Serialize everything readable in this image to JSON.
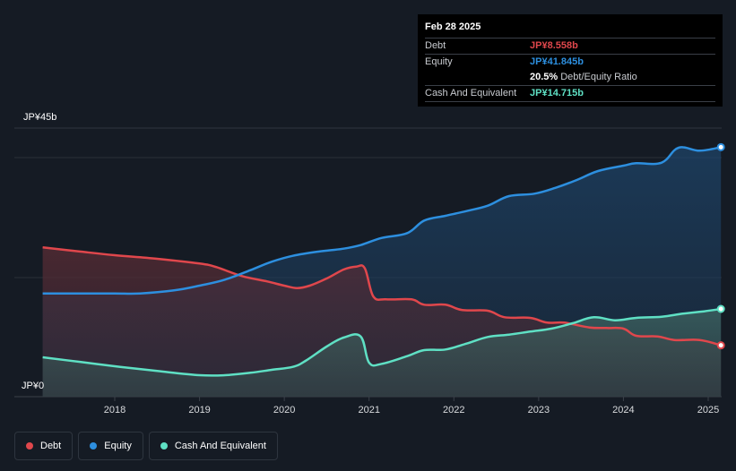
{
  "tooltip": {
    "date": "Feb 28 2025",
    "debt_label": "Debt",
    "debt_value": "JP¥8.558b",
    "equity_label": "Equity",
    "equity_value": "JP¥41.845b",
    "ratio_value": "20.5%",
    "ratio_label": "Debt/Equity Ratio",
    "cash_label": "Cash And Equivalent",
    "cash_value": "JP¥14.715b"
  },
  "legend": [
    {
      "label": "Debt",
      "color": "#e0474c"
    },
    {
      "label": "Equity",
      "color": "#2d8fdf"
    },
    {
      "label": "Cash And Equivalent",
      "color": "#5fe0c4"
    }
  ],
  "chart_data": {
    "type": "line",
    "title": "",
    "xlabel": "",
    "ylabel": "",
    "unit": "JP¥b",
    "y_top_label": "JP¥45b",
    "y_bottom_label": "JP¥0",
    "ylim": [
      0,
      45
    ],
    "xlim": [
      2017.15,
      2025.2
    ],
    "x_ticks": [
      "2018",
      "2019",
      "2020",
      "2021",
      "2022",
      "2023",
      "2024",
      "2025"
    ],
    "series": [
      {
        "name": "Debt",
        "color": "#e0474c",
        "x": [
          2017.15,
          2017.6,
          2018.0,
          2018.5,
          2019.0,
          2019.2,
          2019.5,
          2019.8,
          2020.0,
          2020.15,
          2020.3,
          2020.5,
          2020.7,
          2020.85,
          2020.95,
          2021.05,
          2021.2,
          2021.5,
          2021.65,
          2021.9,
          2022.1,
          2022.4,
          2022.6,
          2022.9,
          2023.1,
          2023.3,
          2023.6,
          2023.8,
          2024.0,
          2024.15,
          2024.4,
          2024.6,
          2024.9,
          2025.15
        ],
        "values": [
          25.0,
          24.3,
          23.7,
          23.1,
          22.3,
          21.7,
          20.2,
          19.3,
          18.6,
          18.2,
          18.6,
          19.8,
          21.3,
          21.8,
          21.5,
          16.8,
          16.3,
          16.3,
          15.4,
          15.4,
          14.5,
          14.4,
          13.3,
          13.2,
          12.4,
          12.4,
          11.6,
          11.5,
          11.4,
          10.2,
          10.1,
          9.5,
          9.5,
          8.6
        ]
      },
      {
        "name": "Equity",
        "color": "#2d8fdf",
        "x": [
          2017.15,
          2017.6,
          2018.0,
          2018.3,
          2018.7,
          2019.0,
          2019.3,
          2019.6,
          2019.85,
          2020.1,
          2020.4,
          2020.7,
          2020.9,
          2021.15,
          2021.45,
          2021.65,
          2021.9,
          2022.15,
          2022.4,
          2022.65,
          2022.95,
          2023.2,
          2023.45,
          2023.7,
          2024.0,
          2024.15,
          2024.45,
          2024.65,
          2024.9,
          2025.15
        ],
        "values": [
          17.3,
          17.3,
          17.3,
          17.3,
          17.8,
          18.6,
          19.6,
          21.2,
          22.6,
          23.6,
          24.3,
          24.8,
          25.4,
          26.6,
          27.4,
          29.5,
          30.3,
          31.1,
          32.0,
          33.6,
          34.0,
          35.0,
          36.3,
          37.8,
          38.7,
          39.1,
          39.2,
          41.7,
          41.2,
          41.8
        ]
      },
      {
        "name": "Cash And Equivalent",
        "color": "#5fe0c4",
        "x": [
          2017.15,
          2017.6,
          2018.0,
          2018.5,
          2019.0,
          2019.3,
          2019.6,
          2019.85,
          2020.1,
          2020.25,
          2020.5,
          2020.7,
          2020.9,
          2021.0,
          2021.15,
          2021.45,
          2021.65,
          2021.9,
          2022.15,
          2022.4,
          2022.65,
          2022.9,
          2023.15,
          2023.4,
          2023.65,
          2023.9,
          2024.15,
          2024.45,
          2024.7,
          2024.95,
          2025.15
        ],
        "values": [
          6.6,
          5.8,
          5.1,
          4.3,
          3.6,
          3.6,
          4.0,
          4.5,
          5.0,
          6.0,
          8.4,
          9.9,
          10.1,
          5.7,
          5.5,
          6.8,
          7.8,
          7.9,
          8.9,
          10.0,
          10.4,
          10.9,
          11.4,
          12.3,
          13.3,
          12.8,
          13.2,
          13.4,
          13.9,
          14.3,
          14.7
        ]
      }
    ]
  }
}
